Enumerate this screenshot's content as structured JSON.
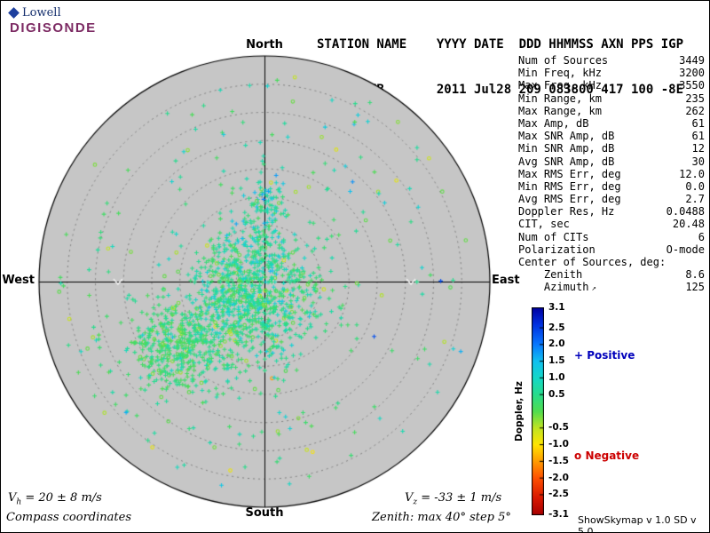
{
  "logo": {
    "brand": "Lowell",
    "product": "DIGISONDE"
  },
  "header": {
    "line1": "STATION NAME    YYYY DATE  DDD HHMMSS AXN PPS IGP",
    "line2": "Eglin AFB       2011 Jul28 209 083800 417 100 -8E"
  },
  "compass": {
    "north": "North",
    "south": "South",
    "west": "West",
    "east": "East"
  },
  "stats": {
    "rows": [
      {
        "label": "Num of Sources",
        "value": "3449"
      },
      {
        "label": "Min Freq, kHz",
        "value": "3200"
      },
      {
        "label": "Max Freq, kHz",
        "value": "3550"
      },
      {
        "label": "Min Range, km",
        "value": "235"
      },
      {
        "label": "Max Range, km",
        "value": "262"
      },
      {
        "label": "Max Amp, dB",
        "value": "61"
      },
      {
        "label": "Max SNR Amp, dB",
        "value": "61"
      },
      {
        "label": "Min SNR Amp, dB",
        "value": "12"
      },
      {
        "label": "Avg SNR Amp, dB",
        "value": "30"
      },
      {
        "label": "Max RMS Err, deg",
        "value": "12.0"
      },
      {
        "label": "Min RMS Err, deg",
        "value": "0.0"
      },
      {
        "label": "Avg RMS Err, deg",
        "value": "2.7"
      },
      {
        "label": "Doppler Res, Hz",
        "value": "0.0488"
      },
      {
        "label": "CIT, sec",
        "value": "20.48"
      },
      {
        "label": "Num of CITs",
        "value": "6"
      },
      {
        "label": "Polarization",
        "value": "O-mode"
      },
      {
        "label": "Center of Sources, deg:",
        "value": ""
      },
      {
        "label": "    Zenith",
        "value": "8.6"
      },
      {
        "label": "    Azimuth",
        "value": "125",
        "icon": "azimuth-arrow"
      }
    ]
  },
  "colorbar": {
    "title": "Doppler, Hz",
    "min": -3.1,
    "max": 3.1,
    "tick_labels": [
      "3.1",
      "2.5",
      "2.0",
      "1.5",
      "1.0",
      "0.5",
      "-0.5",
      "-1.0",
      "-1.5",
      "-2.0",
      "-2.5",
      "-3.1"
    ],
    "stops": [
      {
        "v": -3.1,
        "color": "#a80000"
      },
      {
        "v": -2.6,
        "color": "#d81800"
      },
      {
        "v": -2.0,
        "color": "#ff5000"
      },
      {
        "v": -1.5,
        "color": "#ff9c00"
      },
      {
        "v": -1.0,
        "color": "#ffe400"
      },
      {
        "v": -0.5,
        "color": "#c0e422"
      },
      {
        "v": 0.0,
        "color": "#50dc50"
      },
      {
        "v": 0.5,
        "color": "#28dc8c"
      },
      {
        "v": 1.0,
        "color": "#14d8c8"
      },
      {
        "v": 1.5,
        "color": "#10c0f0"
      },
      {
        "v": 2.0,
        "color": "#0878ff"
      },
      {
        "v": 2.6,
        "color": "#0030e0"
      },
      {
        "v": 3.1,
        "color": "#0000a0"
      }
    ]
  },
  "legend": {
    "positive_symbol": "+",
    "positive_label": "Positive",
    "positive_color": "#0000bb",
    "negative_symbol": "o",
    "negative_label": "Negative",
    "negative_color": "#cc0000"
  },
  "plot": {
    "circle_bg": "#c6c6c6",
    "ring_color": "#7e7e7e",
    "axis_color": "#000000",
    "chevron_color": "#efefef"
  },
  "footer": {
    "vh": {
      "sym": "V",
      "sub": "h",
      "rest": " = 20 ± 8 m/s"
    },
    "vz": {
      "sym": "V",
      "sub": "z",
      "rest": " = -33 ± 1 m/s"
    },
    "coords": "Compass coordinates",
    "zenith_note": "Zenith: max 40°  step 5°",
    "version": "ShowSkymap v 1.0  SD v 5.0"
  },
  "chart_data": {
    "type": "scatter",
    "projection": "polar-sky",
    "max_zenith_deg": 40,
    "ring_step_deg": 5,
    "num_sources": 3449,
    "doppler_range_hz": [
      -3.1,
      3.1
    ],
    "center_of_sources": {
      "zenith_deg": 8.6,
      "azimuth_deg": 125
    },
    "seed": 7,
    "clusters": [
      {
        "name": "main",
        "center_east_deg": -2.2,
        "center_north_deg": -2.2,
        "sigma_east_deg": 5.5,
        "sigma_north_deg": 6.0,
        "count": 900,
        "doppler_mean_hz": 0.55,
        "doppler_sd_hz": 0.35
      },
      {
        "name": "southwest-arm",
        "center_east_deg": -15.0,
        "center_north_deg": -11.5,
        "sigma_east_deg": 4.5,
        "sigma_north_deg": 4.0,
        "count": 450,
        "doppler_mean_hz": 0.35,
        "doppler_sd_hz": 0.3
      },
      {
        "name": "north-column",
        "center_east_deg": -0.3,
        "center_north_deg": 12.0,
        "sigma_east_deg": 2.5,
        "sigma_north_deg": 5.0,
        "count": 130,
        "doppler_mean_hz": 0.8,
        "doppler_sd_hz": 0.4
      }
    ],
    "background_scatter": {
      "count": 220,
      "max_zenith_deg": 37,
      "doppler_mean_hz": 0.4,
      "doppler_sd_hz": 0.6
    }
  }
}
